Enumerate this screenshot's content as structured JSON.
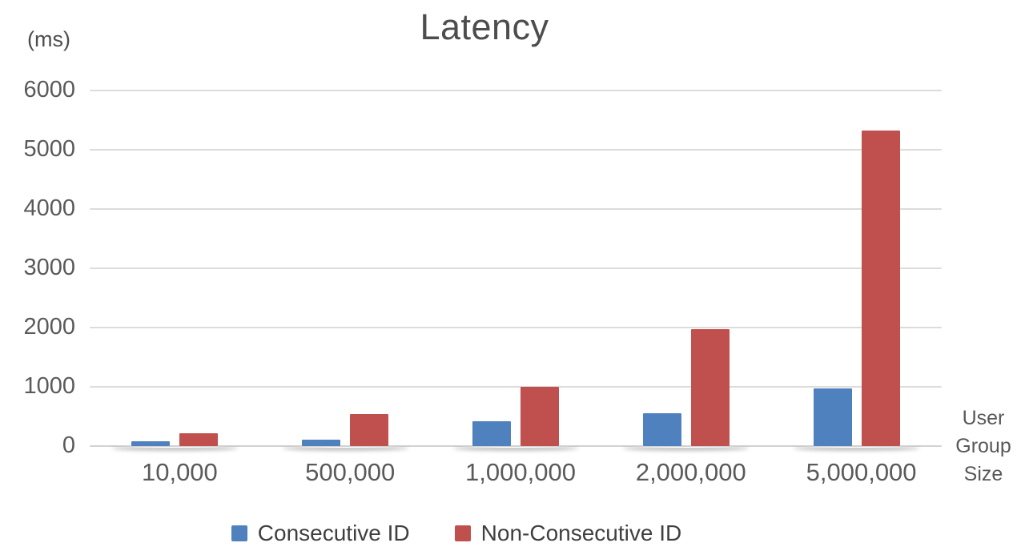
{
  "title": "Latency",
  "y_axis_unit": "(ms)",
  "x_axis_title_lines": [
    "User",
    "Group",
    "Size"
  ],
  "colors": {
    "series_blue": "#4e81bd",
    "series_red": "#c0504d",
    "gridline": "#dcdcdc",
    "text_gray": "#5a5a5a"
  },
  "legend": [
    {
      "label": "Consecutive ID",
      "color": "#4e81bd"
    },
    {
      "label": "Non-Consecutive ID",
      "color": "#c0504d"
    }
  ],
  "chart_data": {
    "type": "bar",
    "title": "Latency",
    "ylabel": "(ms)",
    "xlabel": "User Group Size",
    "categories": [
      "10,000",
      "500,000",
      "1,000,000",
      "2,000,000",
      "5,000,000"
    ],
    "series": [
      {
        "name": "Consecutive ID",
        "color": "#4e81bd",
        "values": [
          80,
          110,
          420,
          560,
          975
        ]
      },
      {
        "name": "Non-Consecutive ID",
        "color": "#c0504d",
        "values": [
          215,
          540,
          1000,
          1975,
          5330
        ]
      }
    ],
    "ylim": [
      0,
      6000
    ],
    "yticks": [
      0,
      1000,
      2000,
      3000,
      4000,
      5000,
      6000
    ],
    "grid": true,
    "legend_position": "bottom"
  }
}
